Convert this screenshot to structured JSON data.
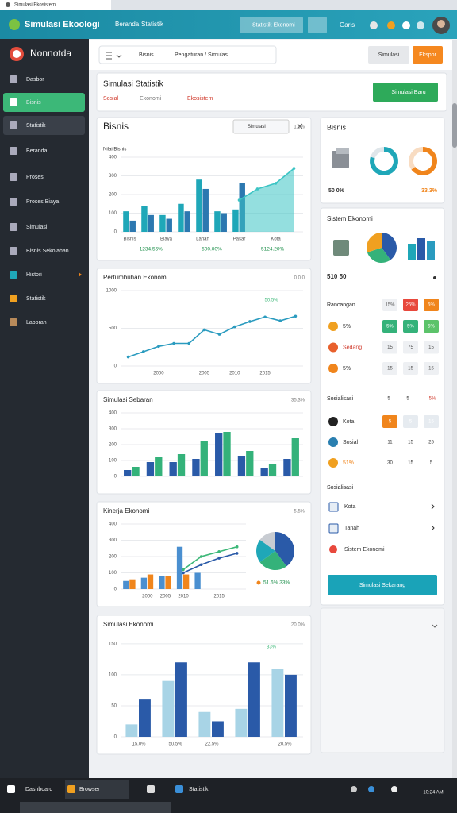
{
  "browser": {
    "tab": "Simulasi Ekosistem"
  },
  "appbar": {
    "title": "Simulasi Ekoologi",
    "nav": [
      "Beranda",
      "Statistik"
    ],
    "search": "Statistik Ekonomi",
    "user": "Garis"
  },
  "sidebar": {
    "brand": "Nonnotda",
    "items": [
      "Dasbor",
      "Bisnis",
      "Statistik",
      "Beranda",
      "Proses",
      "Proses Biaya",
      "Simulasi",
      "Bisnis Sekolahan",
      "Histori",
      "Statistik",
      "Laporan"
    ]
  },
  "toolbar": {
    "filter": "Bisnis",
    "path": "Pengaturan / Simulasi",
    "buttons": [
      "Simulasi",
      "Ekspor"
    ]
  },
  "header": {
    "title": "Simulasi Statistik",
    "tags": [
      "Sosial",
      "Ekonomi",
      "Ekosistem"
    ],
    "button": "Simulasi Baru"
  },
  "charts": [
    {
      "type": "bar",
      "title": "Bisnis",
      "search": "Simulasi",
      "subtitle": "Nilai Bisnis",
      "corner": "1.5%",
      "ylim": [
        0,
        400
      ],
      "yticks": [
        0,
        100,
        200,
        300,
        400
      ],
      "categories": [
        "Bisnis",
        null,
        "Biaya",
        null,
        "Lahan",
        null,
        "Pasar",
        null,
        "Kota",
        null
      ],
      "footer": [
        "1234.56%",
        "500.00%",
        "5124.20%"
      ],
      "series": [
        {
          "type": "bar",
          "color": "#1fa7b8",
          "values": [
            110,
            140,
            90,
            150,
            280,
            110,
            120,
            null,
            null,
            null
          ]
        },
        {
          "type": "bar",
          "color": "#2c78b0",
          "values": [
            60,
            90,
            70,
            110,
            230,
            100,
            260,
            null,
            null,
            null
          ]
        },
        {
          "type": "area",
          "color": "#3cc4c4",
          "values": [
            null,
            null,
            null,
            null,
            null,
            null,
            170,
            230,
            260,
            340
          ]
        }
      ]
    },
    {
      "type": "line",
      "title": "Pertumbuhan Ekonomi",
      "corner": "0 0 0",
      "ylim": [
        0,
        1000
      ],
      "yticks": [
        0,
        500,
        1000
      ],
      "categories": [
        null,
        null,
        "2000",
        null,
        null,
        "2005",
        null,
        "2010",
        null,
        "2015",
        null,
        null
      ],
      "annotation": "50.5%",
      "series": [
        {
          "type": "line",
          "color": "#2a9bbf",
          "values": [
            120,
            190,
            260,
            300,
            300,
            480,
            420,
            520,
            590,
            650,
            600,
            660
          ]
        }
      ]
    },
    {
      "type": "bar",
      "title": "Simulasi Sebaran",
      "corner": "35.3%",
      "ylim": [
        0,
        400
      ],
      "yticks": [
        0,
        100,
        200,
        300,
        400
      ],
      "series": [
        {
          "type": "bar",
          "color": "#2a5aa8",
          "values": [
            40,
            90,
            90,
            110,
            270,
            130,
            50,
            110
          ]
        },
        {
          "type": "bar",
          "color": "#34b27a",
          "values": [
            60,
            120,
            140,
            220,
            280,
            160,
            80,
            240
          ]
        }
      ]
    },
    {
      "type": "bar",
      "title": "Kinerja Ekonomi",
      "corner": "5.5%",
      "ylim": [
        0,
        400
      ],
      "yticks": [
        0,
        100,
        200,
        300,
        400
      ],
      "categories": [
        null,
        "2000",
        "2005",
        "2010",
        null,
        "2015",
        null
      ],
      "series": [
        {
          "type": "bar",
          "color": "#4a8fd0",
          "values": [
            50,
            70,
            80,
            260,
            100,
            null,
            null
          ]
        },
        {
          "type": "bar",
          "color": "#f0851c",
          "values": [
            60,
            90,
            80,
            90,
            null,
            null,
            null
          ]
        },
        {
          "type": "line",
          "color": "#3cb878",
          "values": [
            null,
            null,
            null,
            120,
            200,
            230,
            260
          ]
        },
        {
          "type": "line",
          "color": "#2a5aa8",
          "values": [
            null,
            null,
            null,
            100,
            150,
            190,
            220
          ]
        }
      ],
      "pie": {
        "values": [
          40,
          25,
          20,
          15
        ],
        "colors": [
          "#2a5aa8",
          "#34b27a",
          "#1fa7b8",
          "#c8ccd2"
        ]
      },
      "legend": "51.6% 33%"
    },
    {
      "type": "bar",
      "title": "Simulasi Ekonomi",
      "corner": "20 0%",
      "ylim": [
        0,
        160
      ],
      "yticks": [
        0,
        50,
        100,
        150
      ],
      "categories": [
        "15.0%",
        "50.5%",
        "22.5%",
        null,
        "20.5%"
      ],
      "annotation": "33%",
      "series": [
        {
          "type": "bar",
          "color": "#a8d4e6",
          "values": [
            20,
            90,
            40,
            45,
            110
          ]
        },
        {
          "type": "bar",
          "color": "#2a5aa8",
          "values": [
            60,
            120,
            25,
            120,
            100
          ]
        }
      ]
    }
  ],
  "panels": {
    "summary": {
      "title": "Bisnis",
      "donuts": [
        {
          "values": [
            80,
            20
          ],
          "colors": [
            "#1fa7b8",
            "#dfe6ea"
          ]
        },
        {
          "values": [
            65,
            35
          ],
          "colors": [
            "#f0851c",
            "#f8dcc2"
          ]
        }
      ],
      "left": "50 0%",
      "right": "33.3%"
    },
    "system": {
      "title": "Sistem Ekonomi",
      "pie": {
        "values": [
          40,
          30,
          30
        ],
        "colors": [
          "#2a5aa8",
          "#34b27a",
          "#f0a020"
        ]
      },
      "bars": {
        "values": [
          30,
          40,
          35
        ],
        "colors": [
          "#1fa7b8",
          "#2a5aa8",
          "#2a9bbf"
        ]
      },
      "text": "510 50"
    },
    "table": {
      "title": "Rancangan",
      "head": [
        "15%",
        "25%",
        "5%"
      ],
      "rows": [
        [
          "5%",
          "5%",
          "5%",
          "5%"
        ],
        [
          "Sedang",
          "15",
          "75",
          "15"
        ],
        [
          "5%",
          "15",
          "15",
          "15"
        ]
      ]
    },
    "social": {
      "title": "Sosialisasi",
      "head": [
        "5",
        "5",
        "5%"
      ],
      "rows": [
        [
          "Kota",
          "5",
          "5",
          "15"
        ],
        [
          "Sosial",
          "11",
          "15",
          "25"
        ],
        [
          "51%",
          "30",
          "15",
          "5"
        ]
      ]
    },
    "list": {
      "title": "Sosialisasi",
      "items": [
        "Kota",
        "Tanah",
        "Sistem Ekonomi"
      ],
      "button": "Simulasi Sekarang"
    }
  },
  "taskbar": {
    "items": [
      "Dashboard",
      "Browser",
      "Statistik"
    ],
    "time": "10:24 AM"
  }
}
